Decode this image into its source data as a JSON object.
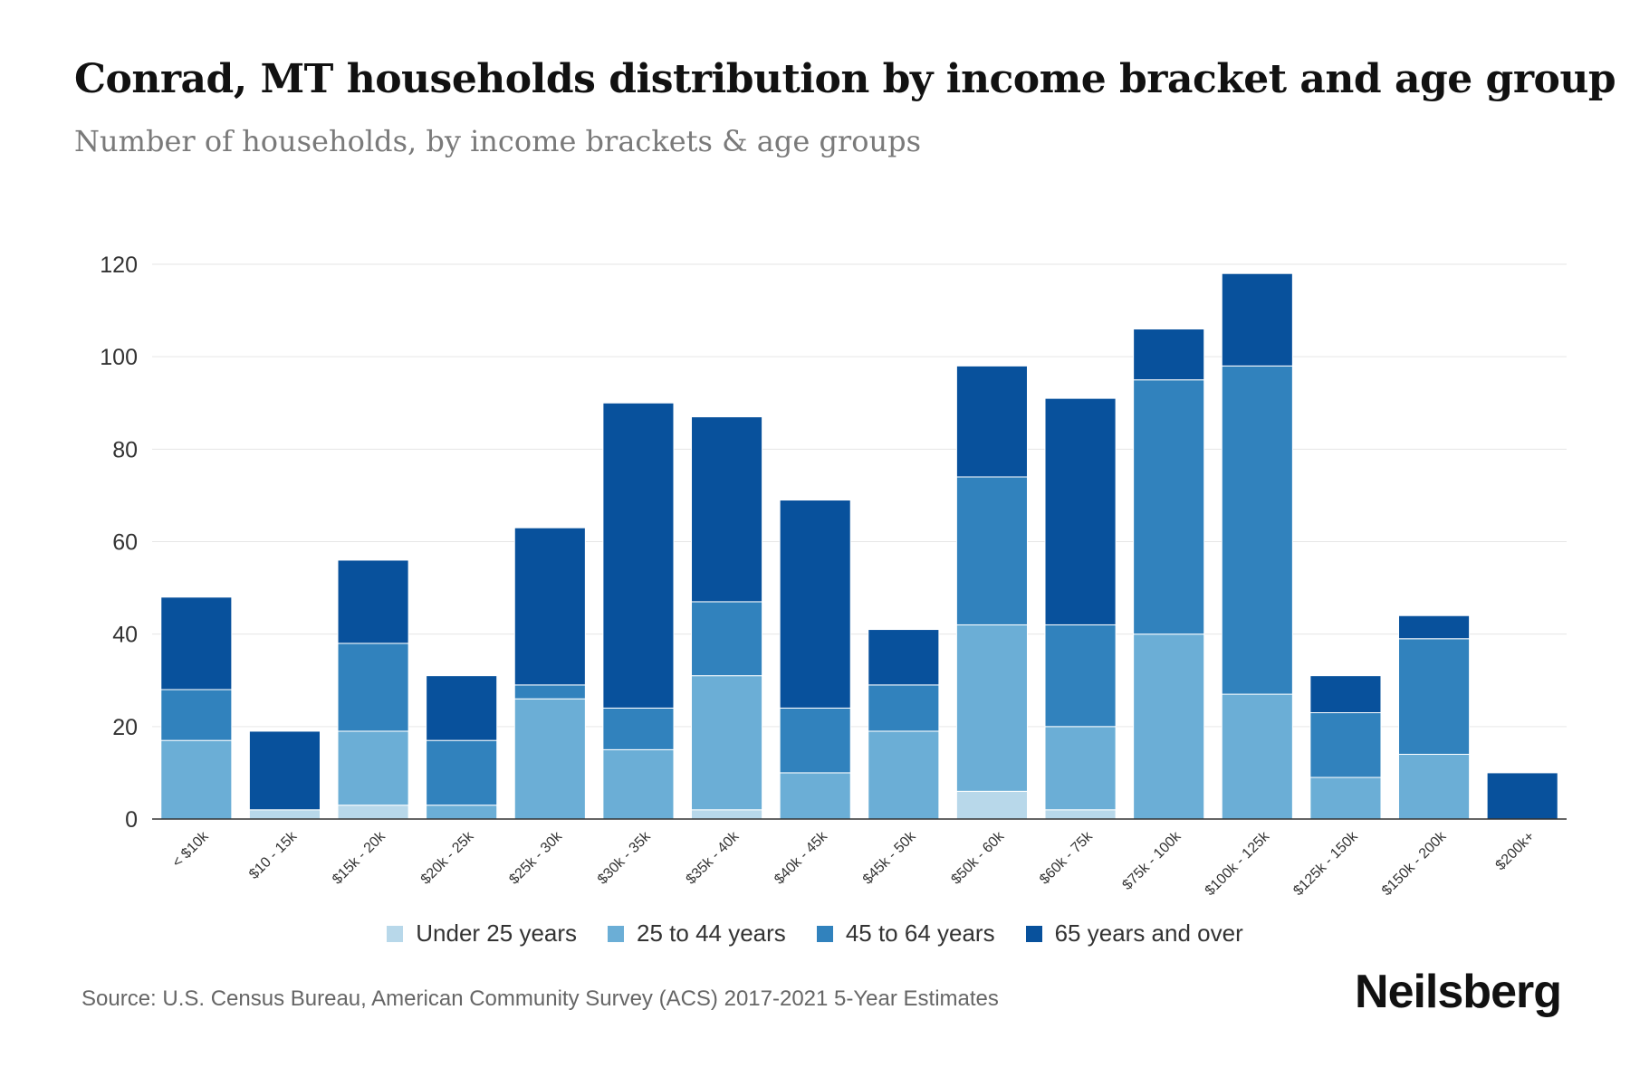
{
  "header": {
    "title": "Conrad, MT households distribution by income bracket and age group",
    "subtitle": "Number of households, by income brackets & age groups"
  },
  "footer": {
    "source": "Source: U.S. Census Bureau, American Community Survey (ACS) 2017-2021 5-Year Estimates",
    "logo": "Neilsberg"
  },
  "chart_data": {
    "type": "bar",
    "stacked": true,
    "title": "Conrad, MT households distribution by income bracket and age group",
    "subtitle": "Number of households, by income brackets & age groups",
    "xlabel": "",
    "ylabel": "",
    "ylim": [
      0,
      120
    ],
    "yticks": [
      0,
      20,
      40,
      60,
      80,
      100,
      120
    ],
    "grid": true,
    "legend_position": "bottom",
    "categories": [
      "< $10k",
      "$10 - 15k",
      "$15k - 20k",
      "$20k - 25k",
      "$25k - 30k",
      "$30k - 35k",
      "$35k - 40k",
      "$40k - 45k",
      "$45k - 50k",
      "$50k - 60k",
      "$60k - 75k",
      "$75k - 100k",
      "$100k - 125k",
      "$125k - 150k",
      "$150k - 200k",
      "$200k+"
    ],
    "series": [
      {
        "name": "Under 25 years",
        "color": "#b8d8ea",
        "values": [
          0,
          2,
          3,
          0,
          0,
          0,
          2,
          0,
          0,
          6,
          2,
          0,
          0,
          0,
          0,
          0
        ]
      },
      {
        "name": "25 to 44 years",
        "color": "#6baed6",
        "values": [
          17,
          0,
          16,
          3,
          26,
          15,
          29,
          10,
          19,
          36,
          18,
          40,
          27,
          9,
          14,
          0
        ]
      },
      {
        "name": "45 to 64 years",
        "color": "#3182bd",
        "values": [
          11,
          0,
          19,
          14,
          3,
          9,
          16,
          14,
          10,
          32,
          22,
          55,
          71,
          14,
          25,
          0
        ]
      },
      {
        "name": "65 years and over",
        "color": "#08519c",
        "values": [
          20,
          17,
          18,
          14,
          34,
          66,
          40,
          45,
          12,
          24,
          49,
          11,
          20,
          8,
          5,
          10
        ]
      }
    ]
  }
}
